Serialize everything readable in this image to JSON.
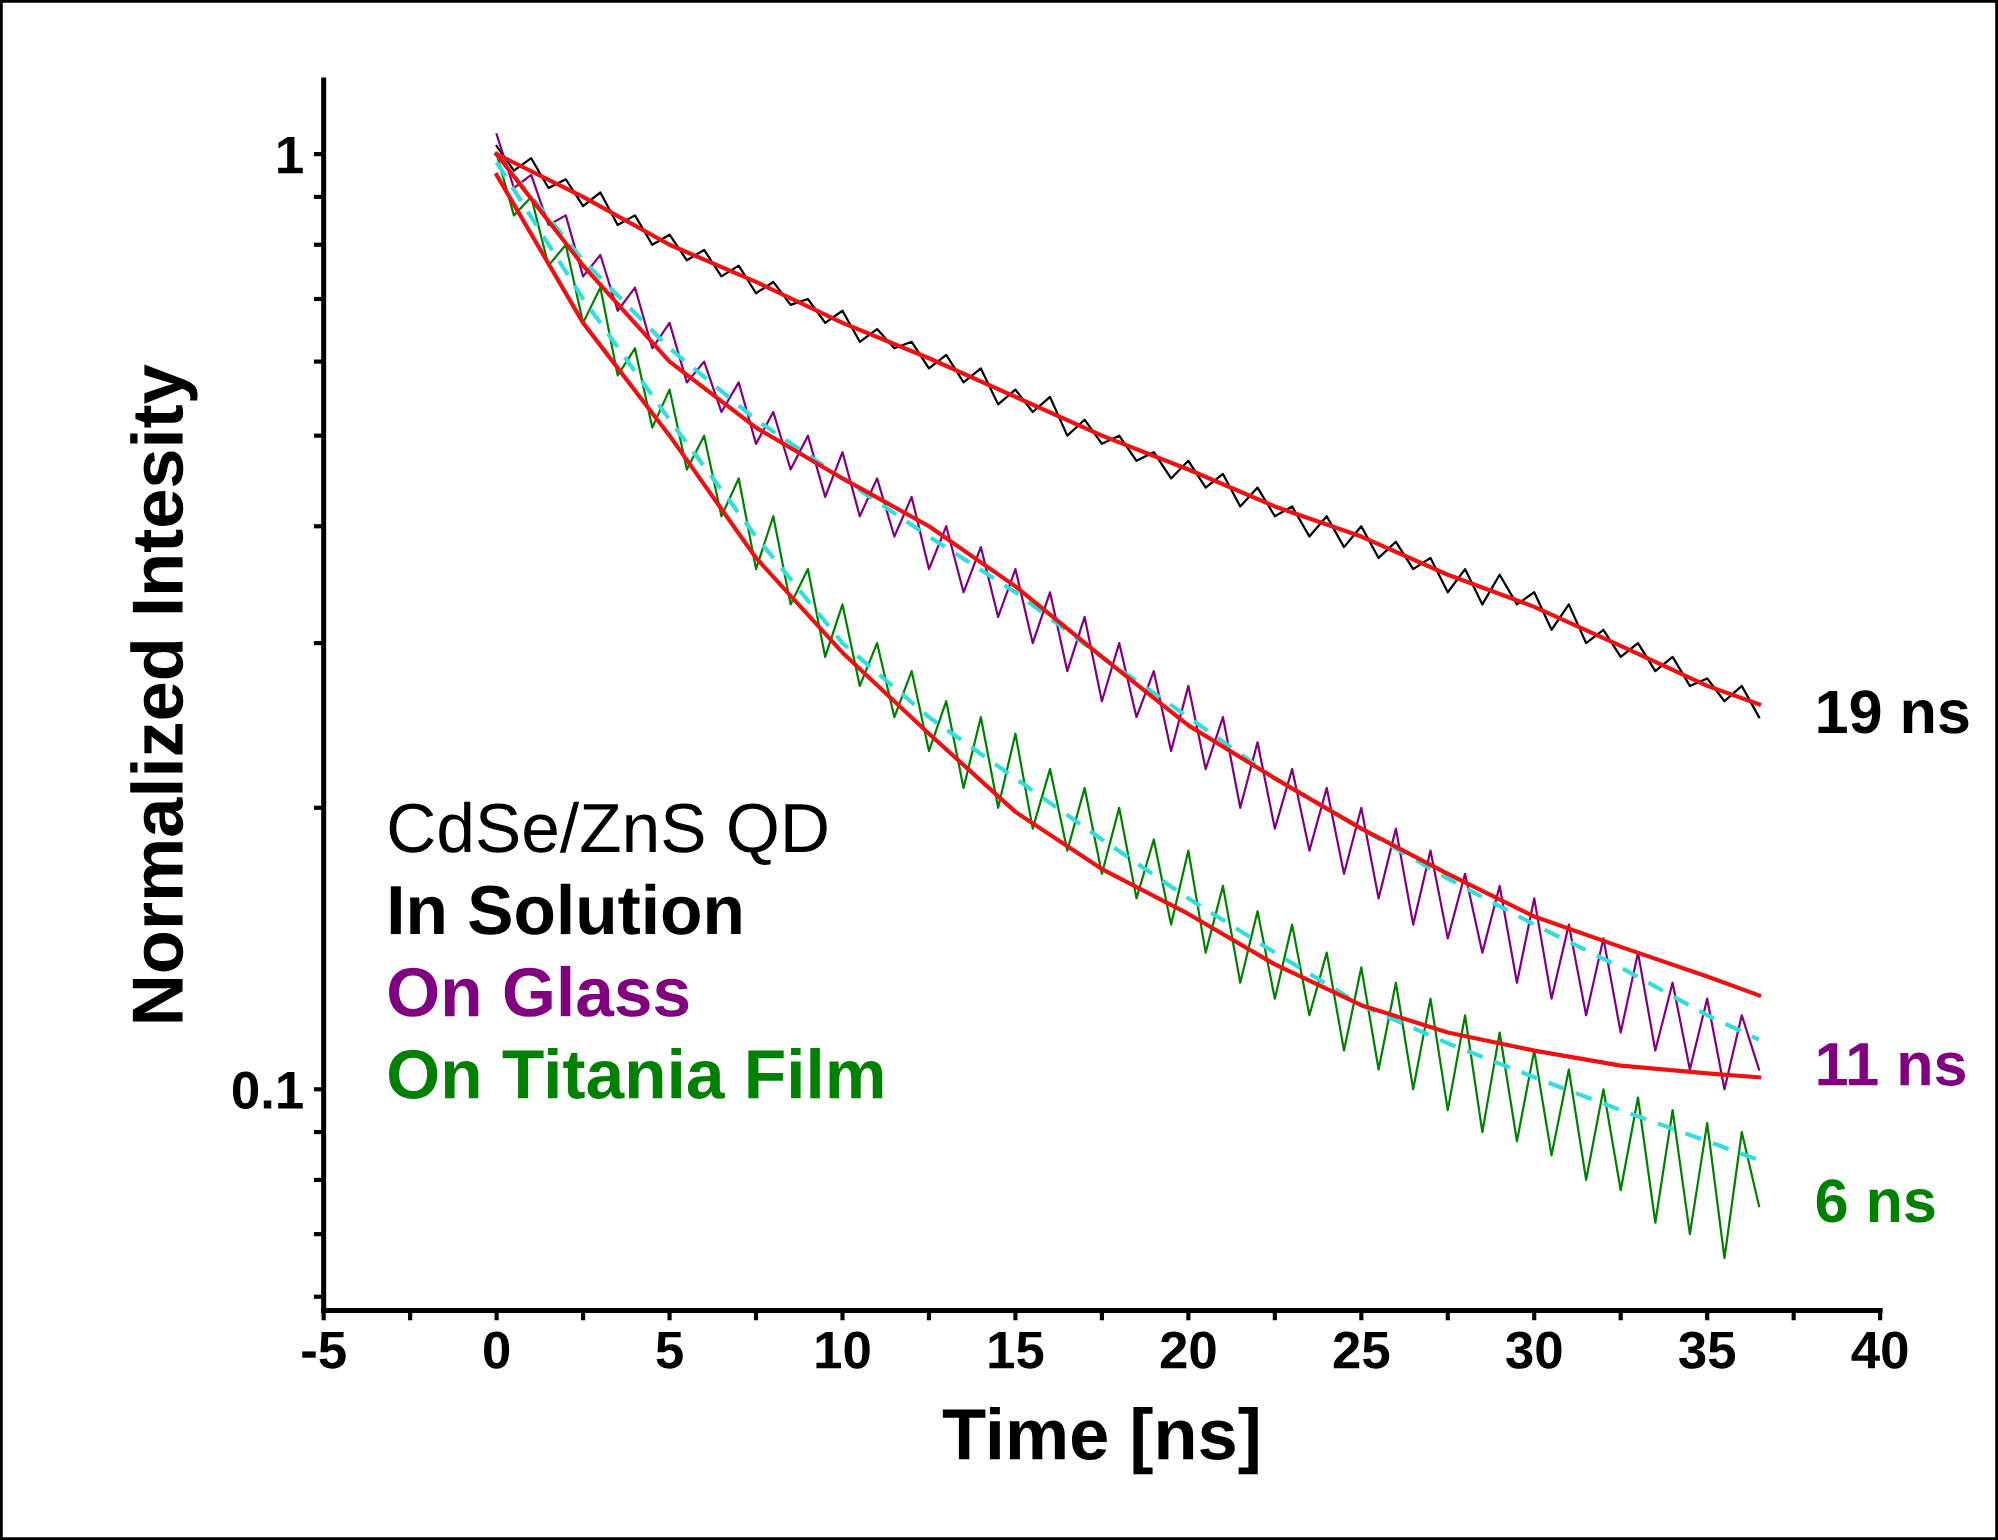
{
  "chart_data": {
    "type": "line",
    "xlabel": "Time [ns]",
    "ylabel": "Normalized Intesity",
    "legend_title": "CdSe/ZnS QD",
    "log": "y",
    "grid": false,
    "legend": "lower left",
    "marker": "none",
    "xlim": [
      -5,
      40
    ],
    "xticks": [
      -5,
      {
        "value": -2.5,
        "label": null
      },
      0,
      {
        "value": 2.5,
        "label": null
      },
      5,
      {
        "value": 7.5,
        "label": null
      },
      10,
      {
        "value": 12.5,
        "label": null
      },
      15,
      {
        "value": 17.5,
        "label": null
      },
      20,
      {
        "value": 22.5,
        "label": null
      },
      25,
      {
        "value": 27.5,
        "label": null
      },
      30,
      {
        "value": 32.5,
        "label": null
      },
      35,
      {
        "value": 37.5,
        "label": null
      },
      40
    ],
    "ylim": [
      0.058,
      1.2
    ],
    "yticks": [
      {
        "value": 0.06,
        "label": null
      },
      {
        "value": 0.07,
        "label": null
      },
      {
        "value": 0.08,
        "label": null
      },
      {
        "value": 0.09,
        "label": null
      },
      0.1,
      {
        "value": 0.2,
        "label": null
      },
      {
        "value": 0.3,
        "label": null
      },
      {
        "value": 0.4,
        "label": null
      },
      {
        "value": 0.5,
        "label": null
      },
      {
        "value": 0.6,
        "label": null
      },
      {
        "value": 0.7,
        "label": null
      },
      {
        "value": 0.8,
        "label": null
      },
      {
        "value": 0.9,
        "label": null
      },
      1
    ],
    "x": [
      0,
      0.5,
      1,
      1.5,
      2,
      2.5,
      3,
      3.5,
      4,
      4.5,
      5,
      5.5,
      6,
      6.5,
      7,
      7.5,
      8,
      8.5,
      9,
      9.5,
      10,
      10.5,
      11,
      11.5,
      12,
      12.5,
      13,
      13.5,
      14,
      14.5,
      15,
      15.5,
      16,
      16.5,
      17,
      17.5,
      18,
      18.5,
      19,
      19.5,
      20,
      20.5,
      21,
      21.5,
      22,
      22.5,
      23,
      23.5,
      24,
      24.5,
      25,
      25.5,
      26,
      26.5,
      27,
      27.5,
      28,
      28.5,
      29,
      29.5,
      30,
      30.5,
      31,
      31.5,
      32,
      32.5,
      33,
      33.5,
      34,
      34.5,
      35,
      35.5,
      36,
      36.5
    ],
    "series": [
      {
        "name": "In Solution",
        "color": "#000000",
        "values": [
          1.02,
          0.96,
          0.99,
          0.92,
          0.94,
          0.88,
          0.91,
          0.84,
          0.86,
          0.8,
          0.82,
          0.77,
          0.79,
          0.74,
          0.76,
          0.71,
          0.73,
          0.69,
          0.7,
          0.66,
          0.68,
          0.63,
          0.65,
          0.62,
          0.63,
          0.59,
          0.61,
          0.57,
          0.59,
          0.54,
          0.56,
          0.53,
          0.55,
          0.5,
          0.52,
          0.49,
          0.5,
          0.47,
          0.48,
          0.45,
          0.47,
          0.44,
          0.455,
          0.42,
          0.44,
          0.41,
          0.42,
          0.39,
          0.41,
          0.38,
          0.4,
          0.37,
          0.385,
          0.36,
          0.37,
          0.34,
          0.36,
          0.33,
          0.355,
          0.33,
          0.34,
          0.31,
          0.33,
          0.3,
          0.31,
          0.29,
          0.3,
          0.28,
          0.29,
          0.27,
          0.275,
          0.26,
          0.27,
          0.25
        ]
      },
      {
        "name": "On Glass",
        "color": "#800080",
        "values": [
          1.05,
          0.92,
          0.95,
          0.84,
          0.86,
          0.74,
          0.78,
          0.68,
          0.72,
          0.62,
          0.66,
          0.57,
          0.6,
          0.53,
          0.57,
          0.49,
          0.53,
          0.46,
          0.5,
          0.43,
          0.48,
          0.41,
          0.45,
          0.39,
          0.43,
          0.36,
          0.4,
          0.34,
          0.38,
          0.32,
          0.36,
          0.3,
          0.34,
          0.28,
          0.32,
          0.26,
          0.3,
          0.25,
          0.28,
          0.23,
          0.27,
          0.22,
          0.25,
          0.2,
          0.235,
          0.19,
          0.22,
          0.18,
          0.21,
          0.17,
          0.2,
          0.16,
          0.19,
          0.15,
          0.18,
          0.145,
          0.17,
          0.14,
          0.165,
          0.13,
          0.16,
          0.125,
          0.15,
          0.12,
          0.145,
          0.115,
          0.14,
          0.11,
          0.13,
          0.105,
          0.125,
          0.1,
          0.12,
          0.105
        ]
      },
      {
        "name": "On Titania Film",
        "color": "#008000",
        "values": [
          1.0,
          0.86,
          0.9,
          0.76,
          0.8,
          0.66,
          0.72,
          0.58,
          0.62,
          0.51,
          0.56,
          0.46,
          0.5,
          0.41,
          0.45,
          0.36,
          0.41,
          0.33,
          0.36,
          0.29,
          0.33,
          0.27,
          0.3,
          0.25,
          0.28,
          0.23,
          0.26,
          0.21,
          0.25,
          0.2,
          0.24,
          0.19,
          0.22,
          0.18,
          0.21,
          0.17,
          0.2,
          0.16,
          0.185,
          0.15,
          0.18,
          0.14,
          0.165,
          0.13,
          0.155,
          0.125,
          0.15,
          0.12,
          0.14,
          0.11,
          0.135,
          0.105,
          0.13,
          0.1,
          0.125,
          0.095,
          0.12,
          0.09,
          0.115,
          0.088,
          0.11,
          0.085,
          0.105,
          0.08,
          0.1,
          0.078,
          0.098,
          0.072,
          0.095,
          0.07,
          0.092,
          0.066,
          0.09,
          0.075
        ]
      },
      {
        "color": "#ee1111",
        "x": [
          0,
          2.5,
          5,
          7.5,
          10,
          12.5,
          15,
          17.5,
          20,
          22.5,
          25,
          27.5,
          30,
          32.5,
          35,
          36.5
        ],
        "values": [
          1.0,
          0.9,
          0.8,
          0.73,
          0.66,
          0.605,
          0.55,
          0.5,
          0.46,
          0.42,
          0.39,
          0.355,
          0.328,
          0.298,
          0.27,
          0.258
        ]
      },
      {
        "color": "#33dddd",
        "line_style": "dashed",
        "x": [
          0,
          2.5,
          5,
          7.5,
          10,
          12.5,
          15,
          17.5,
          20,
          22.5,
          25,
          27.5,
          30,
          32.5,
          35,
          36.5
        ],
        "values": [
          1.0,
          0.77,
          0.62,
          0.52,
          0.45,
          0.39,
          0.34,
          0.29,
          0.25,
          0.215,
          0.19,
          0.168,
          0.15,
          0.135,
          0.12,
          0.113
        ]
      },
      {
        "color": "#ee1111",
        "x": [
          0,
          2.5,
          5,
          7.5,
          10,
          12.5,
          15,
          17.5,
          20,
          22.5,
          25,
          27.5,
          30,
          32.5,
          35,
          36.5
        ],
        "values": [
          1.0,
          0.76,
          0.6,
          0.51,
          0.45,
          0.4,
          0.345,
          0.29,
          0.245,
          0.215,
          0.19,
          0.17,
          0.153,
          0.142,
          0.132,
          0.126
        ]
      },
      {
        "color": "#33dddd",
        "line_style": "dashed",
        "x": [
          0,
          2.5,
          5,
          7.5,
          10,
          12.5,
          15,
          17.5,
          20,
          22.5,
          25,
          27.5,
          30,
          32.5,
          35,
          36.5
        ],
        "values": [
          0.98,
          0.7,
          0.52,
          0.39,
          0.3,
          0.25,
          0.215,
          0.185,
          0.16,
          0.14,
          0.123,
          0.112,
          0.103,
          0.095,
          0.088,
          0.084
        ]
      },
      {
        "color": "#ee1111",
        "x": [
          0,
          2.5,
          5,
          7.5,
          10,
          12.5,
          15,
          17.5,
          20,
          22.5,
          25,
          27.5,
          30,
          32.5,
          35,
          36.5
        ],
        "values": [
          0.95,
          0.66,
          0.5,
          0.37,
          0.293,
          0.24,
          0.198,
          0.172,
          0.154,
          0.136,
          0.123,
          0.115,
          0.11,
          0.106,
          0.104,
          0.103
        ]
      }
    ],
    "annotations": [
      "19 ns",
      "11 ns",
      "6 ns"
    ]
  }
}
